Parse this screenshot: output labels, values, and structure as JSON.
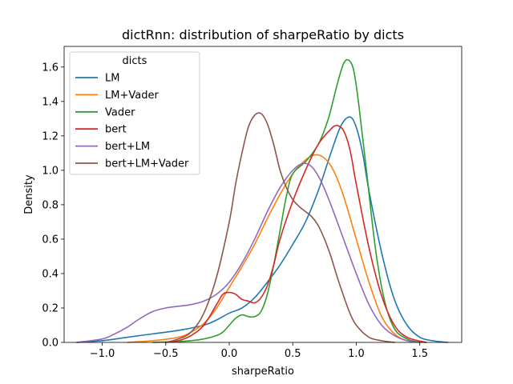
{
  "chart_data": {
    "type": "line",
    "title": "dictRnn: distribution of sharpeRatio by dicts",
    "xlabel": "sharpeRatio",
    "ylabel": "Density",
    "xlim": [
      -1.3,
      1.83
    ],
    "ylim": [
      0,
      1.72
    ],
    "xticks": [
      -1.0,
      -0.5,
      0.0,
      0.5,
      1.0,
      1.5
    ],
    "xtick_labels": [
      "−1.0",
      "−0.5",
      "0.0",
      "0.5",
      "1.0",
      "1.5"
    ],
    "yticks": [
      0.0,
      0.2,
      0.4,
      0.6,
      0.8,
      1.0,
      1.2,
      1.4,
      1.6
    ],
    "ytick_labels": [
      "0.0",
      "0.2",
      "0.4",
      "0.6",
      "0.8",
      "1.0",
      "1.2",
      "1.4",
      "1.6"
    ],
    "grid": false,
    "legend": {
      "title": "dicts",
      "location": "upper left"
    },
    "series": [
      {
        "name": "LM",
        "color": "#1f77b4",
        "points": [
          [
            -1.2,
            0.0
          ],
          [
            -1.0,
            0.01
          ],
          [
            -0.8,
            0.03
          ],
          [
            -0.6,
            0.05
          ],
          [
            -0.4,
            0.07
          ],
          [
            -0.2,
            0.1
          ],
          [
            -0.1,
            0.13
          ],
          [
            0.0,
            0.17
          ],
          [
            0.1,
            0.2
          ],
          [
            0.2,
            0.26
          ],
          [
            0.3,
            0.35
          ],
          [
            0.4,
            0.45
          ],
          [
            0.5,
            0.57
          ],
          [
            0.6,
            0.7
          ],
          [
            0.7,
            0.88
          ],
          [
            0.8,
            1.1
          ],
          [
            0.88,
            1.26
          ],
          [
            0.95,
            1.31
          ],
          [
            1.0,
            1.25
          ],
          [
            1.05,
            1.1
          ],
          [
            1.1,
            0.88
          ],
          [
            1.2,
            0.52
          ],
          [
            1.3,
            0.25
          ],
          [
            1.4,
            0.1
          ],
          [
            1.5,
            0.03
          ],
          [
            1.6,
            0.01
          ],
          [
            1.72,
            0.0
          ]
        ]
      },
      {
        "name": "LM+Vader",
        "color": "#ff7f0e",
        "points": [
          [
            -0.8,
            0.0
          ],
          [
            -0.6,
            0.01
          ],
          [
            -0.4,
            0.03
          ],
          [
            -0.3,
            0.06
          ],
          [
            -0.2,
            0.11
          ],
          [
            -0.1,
            0.2
          ],
          [
            0.0,
            0.32
          ],
          [
            0.1,
            0.44
          ],
          [
            0.2,
            0.57
          ],
          [
            0.3,
            0.72
          ],
          [
            0.4,
            0.86
          ],
          [
            0.5,
            0.98
          ],
          [
            0.6,
            1.06
          ],
          [
            0.68,
            1.09
          ],
          [
            0.75,
            1.07
          ],
          [
            0.82,
            1.0
          ],
          [
            0.9,
            0.85
          ],
          [
            1.0,
            0.6
          ],
          [
            1.1,
            0.35
          ],
          [
            1.2,
            0.15
          ],
          [
            1.3,
            0.05
          ],
          [
            1.4,
            0.01
          ],
          [
            1.55,
            0.0
          ]
        ]
      },
      {
        "name": "Vader",
        "color": "#2ca02c",
        "points": [
          [
            -0.6,
            0.0
          ],
          [
            -0.4,
            0.005
          ],
          [
            -0.3,
            0.01
          ],
          [
            -0.2,
            0.02
          ],
          [
            -0.1,
            0.04
          ],
          [
            -0.05,
            0.06
          ],
          [
            0.0,
            0.1
          ],
          [
            0.05,
            0.14
          ],
          [
            0.1,
            0.16
          ],
          [
            0.15,
            0.15
          ],
          [
            0.2,
            0.15
          ],
          [
            0.25,
            0.18
          ],
          [
            0.3,
            0.28
          ],
          [
            0.35,
            0.45
          ],
          [
            0.4,
            0.65
          ],
          [
            0.45,
            0.85
          ],
          [
            0.5,
            0.98
          ],
          [
            0.6,
            1.05
          ],
          [
            0.7,
            1.15
          ],
          [
            0.78,
            1.3
          ],
          [
            0.85,
            1.5
          ],
          [
            0.9,
            1.62
          ],
          [
            0.94,
            1.64
          ],
          [
            0.98,
            1.58
          ],
          [
            1.02,
            1.38
          ],
          [
            1.08,
            1.0
          ],
          [
            1.15,
            0.55
          ],
          [
            1.22,
            0.25
          ],
          [
            1.3,
            0.08
          ],
          [
            1.4,
            0.02
          ],
          [
            1.5,
            0.0
          ]
        ]
      },
      {
        "name": "bert",
        "color": "#d62728",
        "points": [
          [
            -0.5,
            0.0
          ],
          [
            -0.4,
            0.01
          ],
          [
            -0.3,
            0.04
          ],
          [
            -0.2,
            0.1
          ],
          [
            -0.1,
            0.22
          ],
          [
            -0.05,
            0.28
          ],
          [
            0.0,
            0.29
          ],
          [
            0.05,
            0.28
          ],
          [
            0.1,
            0.25
          ],
          [
            0.15,
            0.24
          ],
          [
            0.2,
            0.23
          ],
          [
            0.25,
            0.26
          ],
          [
            0.3,
            0.33
          ],
          [
            0.35,
            0.45
          ],
          [
            0.4,
            0.6
          ],
          [
            0.5,
            0.82
          ],
          [
            0.6,
            1.0
          ],
          [
            0.7,
            1.15
          ],
          [
            0.8,
            1.24
          ],
          [
            0.85,
            1.26
          ],
          [
            0.9,
            1.23
          ],
          [
            0.95,
            1.12
          ],
          [
            1.0,
            0.92
          ],
          [
            1.1,
            0.55
          ],
          [
            1.2,
            0.27
          ],
          [
            1.3,
            0.1
          ],
          [
            1.4,
            0.03
          ],
          [
            1.55,
            0.0
          ]
        ]
      },
      {
        "name": "bert+LM",
        "color": "#9467bd",
        "points": [
          [
            -1.2,
            0.0
          ],
          [
            -1.0,
            0.02
          ],
          [
            -0.9,
            0.05
          ],
          [
            -0.8,
            0.09
          ],
          [
            -0.7,
            0.14
          ],
          [
            -0.6,
            0.18
          ],
          [
            -0.5,
            0.2
          ],
          [
            -0.4,
            0.21
          ],
          [
            -0.3,
            0.22
          ],
          [
            -0.2,
            0.24
          ],
          [
            -0.1,
            0.28
          ],
          [
            0.0,
            0.35
          ],
          [
            0.1,
            0.46
          ],
          [
            0.2,
            0.6
          ],
          [
            0.3,
            0.76
          ],
          [
            0.4,
            0.9
          ],
          [
            0.5,
            1.0
          ],
          [
            0.58,
            1.04
          ],
          [
            0.65,
            1.02
          ],
          [
            0.72,
            0.94
          ],
          [
            0.8,
            0.8
          ],
          [
            0.9,
            0.6
          ],
          [
            1.0,
            0.4
          ],
          [
            1.1,
            0.22
          ],
          [
            1.2,
            0.1
          ],
          [
            1.3,
            0.04
          ],
          [
            1.4,
            0.01
          ],
          [
            1.5,
            0.0
          ]
        ]
      },
      {
        "name": "bert+LM+Vader",
        "color": "#8c564b",
        "points": [
          [
            -0.5,
            0.0
          ],
          [
            -0.4,
            0.02
          ],
          [
            -0.3,
            0.06
          ],
          [
            -0.2,
            0.17
          ],
          [
            -0.1,
            0.38
          ],
          [
            0.0,
            0.7
          ],
          [
            0.05,
            0.92
          ],
          [
            0.1,
            1.1
          ],
          [
            0.15,
            1.25
          ],
          [
            0.2,
            1.32
          ],
          [
            0.25,
            1.33
          ],
          [
            0.3,
            1.27
          ],
          [
            0.35,
            1.15
          ],
          [
            0.4,
            1.0
          ],
          [
            0.45,
            0.9
          ],
          [
            0.5,
            0.83
          ],
          [
            0.55,
            0.79
          ],
          [
            0.6,
            0.76
          ],
          [
            0.65,
            0.73
          ],
          [
            0.7,
            0.68
          ],
          [
            0.75,
            0.6
          ],
          [
            0.8,
            0.5
          ],
          [
            0.85,
            0.38
          ],
          [
            0.9,
            0.27
          ],
          [
            0.95,
            0.17
          ],
          [
            1.0,
            0.1
          ],
          [
            1.1,
            0.03
          ],
          [
            1.2,
            0.01
          ],
          [
            1.3,
            0.0
          ]
        ]
      }
    ]
  }
}
